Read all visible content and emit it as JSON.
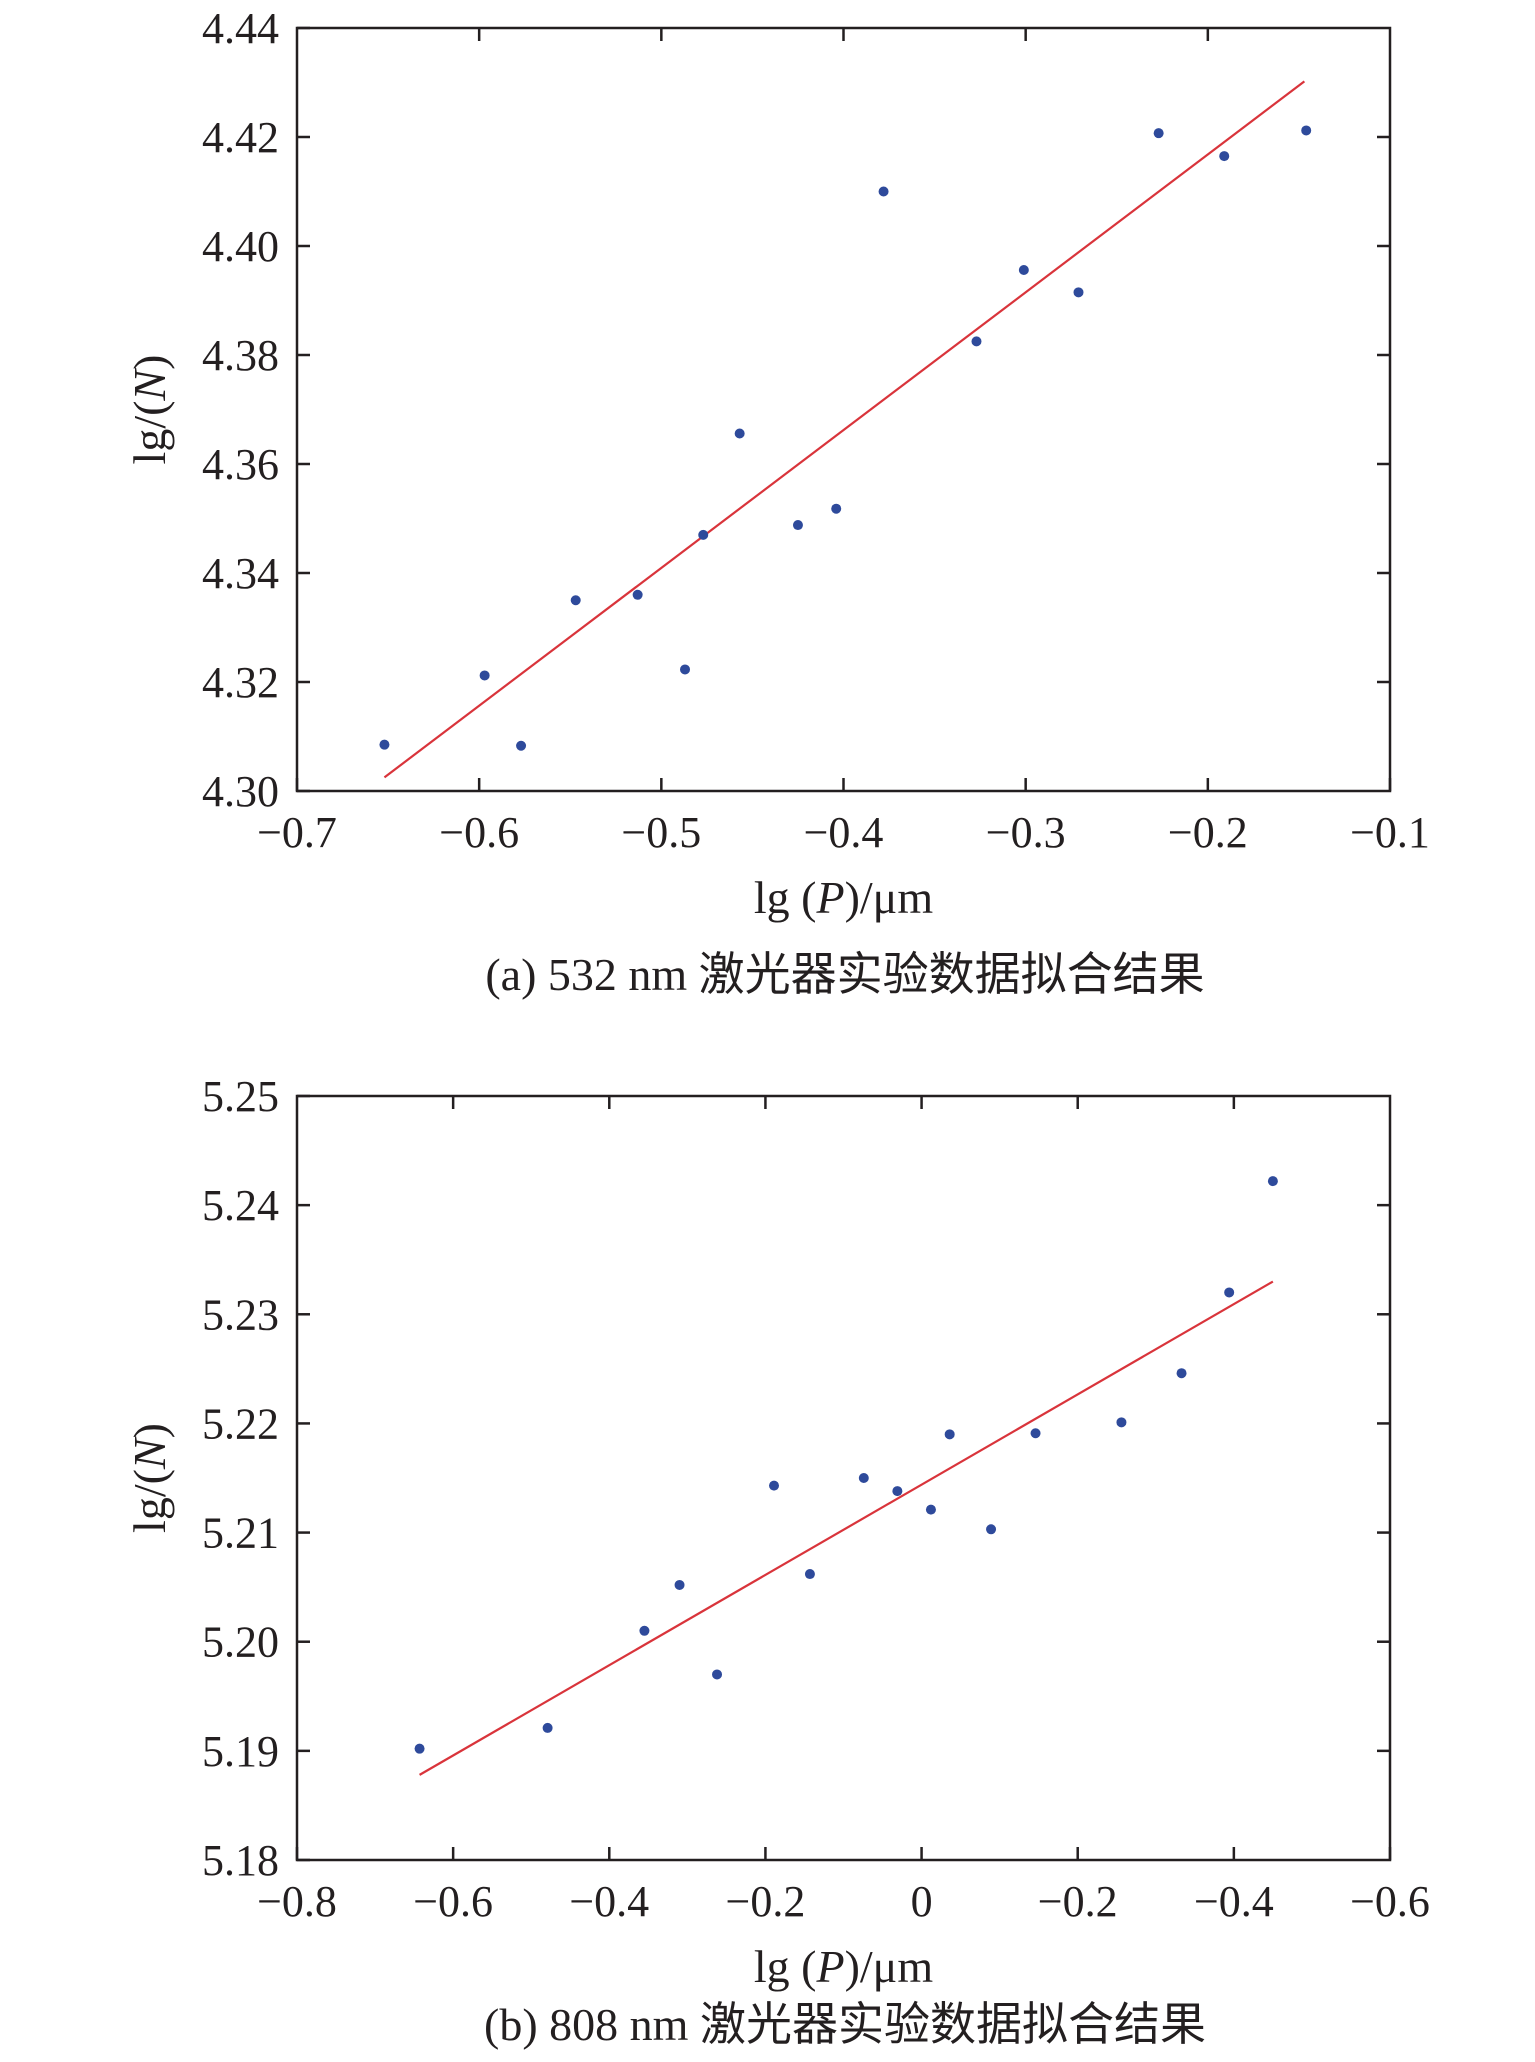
{
  "chart_data": [
    {
      "type": "scatter",
      "caption": "(a) 532 nm 激光器实验数据拟合结果",
      "xlabel": "lg (P)/μm",
      "ylabel": "lg/(N)",
      "xlim": [
        -0.7,
        -0.1
      ],
      "ylim": [
        4.3,
        4.44
      ],
      "xticks": [
        "−0.7",
        "−0.6",
        "−0.5",
        "−0.4",
        "−0.3",
        "−0.2",
        "−0.1"
      ],
      "yticks": [
        "4.30",
        "4.32",
        "4.34",
        "4.36",
        "4.38",
        "4.40",
        "4.42",
        "4.44"
      ],
      "points": [
        {
          "x": -0.652,
          "y": 4.3085
        },
        {
          "x": -0.597,
          "y": 4.3212
        },
        {
          "x": -0.577,
          "y": 4.3083
        },
        {
          "x": -0.547,
          "y": 4.335
        },
        {
          "x": -0.513,
          "y": 4.336
        },
        {
          "x": -0.487,
          "y": 4.3223
        },
        {
          "x": -0.477,
          "y": 4.347
        },
        {
          "x": -0.457,
          "y": 4.3656
        },
        {
          "x": -0.425,
          "y": 4.3488
        },
        {
          "x": -0.404,
          "y": 4.3518
        },
        {
          "x": -0.378,
          "y": 4.41
        },
        {
          "x": -0.327,
          "y": 4.3825
        },
        {
          "x": -0.301,
          "y": 4.3956
        },
        {
          "x": -0.271,
          "y": 4.3915
        },
        {
          "x": -0.227,
          "y": 4.4207
        },
        {
          "x": -0.191,
          "y": 4.4165
        },
        {
          "x": -0.146,
          "y": 4.4212
        }
      ],
      "fit_line": [
        {
          "x": -0.652,
          "y": 4.3025
        },
        {
          "x": -0.147,
          "y": 4.4302
        }
      ],
      "grid": false
    },
    {
      "type": "scatter",
      "caption": "(b) 808 nm 激光器实验数据拟合结果",
      "xlabel": "lg (P)/μm",
      "ylabel": "lg/(N)",
      "xlim": [
        -0.8,
        0.6
      ],
      "ylim": [
        5.18,
        5.25
      ],
      "xticks": [
        "−0.8",
        "−0.6",
        "−0.4",
        "−0.2",
        "0",
        "−0.2",
        "−0.4",
        "−0.6"
      ],
      "yticks": [
        "5.18",
        "5.19",
        "5.20",
        "5.21",
        "5.22",
        "5.23",
        "5.24",
        "5.25"
      ],
      "points": [
        {
          "x": -0.643,
          "y": 5.1902
        },
        {
          "x": -0.479,
          "y": 5.1921
        },
        {
          "x": -0.355,
          "y": 5.201
        },
        {
          "x": -0.31,
          "y": 5.2052
        },
        {
          "x": -0.262,
          "y": 5.197
        },
        {
          "x": -0.189,
          "y": 5.2143
        },
        {
          "x": -0.143,
          "y": 5.2062
        },
        {
          "x": -0.074,
          "y": 5.215
        },
        {
          "x": -0.031,
          "y": 5.2138
        },
        {
          "x": 0.012,
          "y": 5.2121
        },
        {
          "x": 0.036,
          "y": 5.219
        },
        {
          "x": 0.089,
          "y": 5.2103
        },
        {
          "x": 0.146,
          "y": 5.2191
        },
        {
          "x": 0.256,
          "y": 5.2201
        },
        {
          "x": 0.333,
          "y": 5.2246
        },
        {
          "x": 0.394,
          "y": 5.232
        },
        {
          "x": 0.45,
          "y": 5.2422
        }
      ],
      "fit_line": [
        {
          "x": -0.643,
          "y": 5.1878
        },
        {
          "x": 0.45,
          "y": 5.233
        }
      ],
      "grid": false
    }
  ]
}
